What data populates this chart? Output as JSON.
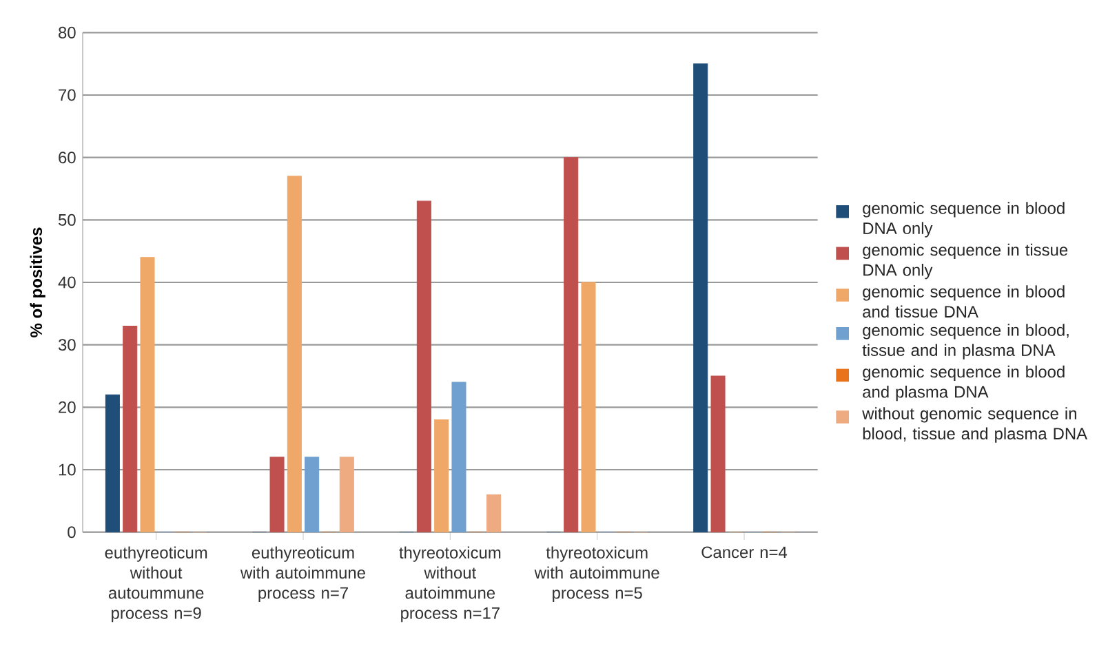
{
  "chart_data": {
    "type": "bar",
    "ylabel": "% of positives",
    "categories": [
      "euthyreoticum without autoummune process n=9",
      "euthyreoticum with autoimmune process n=7",
      "thyreotoxicum without autoimmune process n=17",
      "thyreotoxicum with autoimmune process n=5",
      "Cancer n=4"
    ],
    "series": [
      {
        "name": "genomic sequence in blood DNA only",
        "color": "#1f4e79",
        "values": [
          22,
          0,
          0,
          0,
          75
        ]
      },
      {
        "name": "genomic sequence in tissue DNA only",
        "color": "#c0504d",
        "values": [
          33,
          12,
          53,
          60,
          25
        ]
      },
      {
        "name": "genomic sequence in blood and tissue DNA",
        "color": "#f0a868",
        "values": [
          44,
          57,
          18,
          40,
          0
        ]
      },
      {
        "name": "genomic sequence in blood, tissue and in plasma DNA",
        "color": "#6fa0d0",
        "values": [
          0,
          12,
          24,
          0,
          0
        ]
      },
      {
        "name": "genomic sequence in blood and plasma DNA",
        "color": "#e8731a",
        "values": [
          0,
          0,
          0,
          0,
          0
        ]
      },
      {
        "name": "without genomic sequence in blood, tissue and plasma DNA",
        "color": "#eeaa80",
        "values": [
          0,
          12,
          6,
          0,
          0
        ]
      }
    ],
    "ylim": [
      0,
      80
    ],
    "yticks": [
      0,
      10,
      20,
      30,
      40,
      50,
      60,
      70,
      80
    ],
    "grid": "y",
    "legend": "right"
  }
}
